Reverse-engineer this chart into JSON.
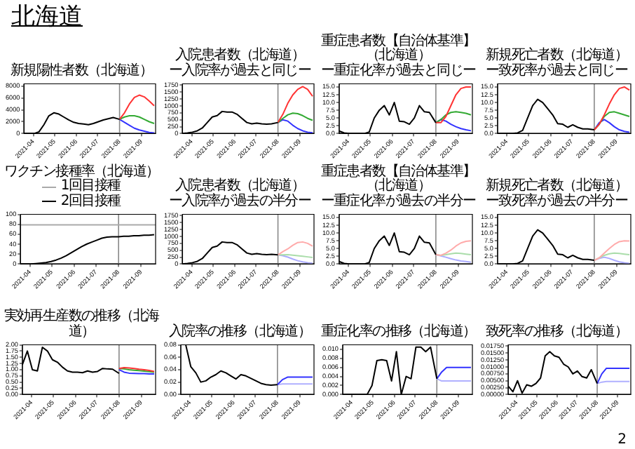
{
  "chart_data": [
    {
      "type": "line",
      "title": "新規陽性者数（北海道）",
      "annotations": [
        "北海道"
      ],
      "x": [
        "2021-03-19",
        "2021-03-26",
        "2021-04-02",
        "2021-04-09",
        "2021-04-16",
        "2021-04-23",
        "2021-04-30",
        "2021-05-07",
        "2021-05-14",
        "2021-05-21",
        "2021-05-28",
        "2021-06-04",
        "2021-06-11",
        "2021-06-18",
        "2021-06-25",
        "2021-07-02",
        "2021-07-09",
        "2021-07-16",
        "2021-07-23",
        "2021-08-01"
      ],
      "xlim": [
        "2021-03-19",
        "2021-09-21"
      ],
      "xticks": [
        "2021-04",
        "2021-05",
        "2021-06",
        "2021-07",
        "2021-08",
        "2021-09"
      ],
      "ylim": [
        0,
        8400
      ],
      "yticks": [
        0,
        2000,
        4000,
        6000,
        8000
      ],
      "ref_lines": [
        {
          "axis": "x",
          "value": "2021-08-01",
          "color": "#888888"
        }
      ],
      "series": [
        {
          "color": "#000000",
          "values": [
            0,
            0,
            0,
            300,
            1500,
            3000,
            3500,
            3300,
            2800,
            2300,
            1900,
            1700,
            1600,
            1500,
            1700,
            2000,
            2300,
            2500,
            2700,
            2400
          ]
        },
        {
          "color": "#ff3333",
          "x": [
            "2021-08-01",
            "2021-08-08",
            "2021-08-15",
            "2021-08-22",
            "2021-08-29",
            "2021-09-05",
            "2021-09-12",
            "2021-09-19"
          ],
          "values": [
            2400,
            3500,
            5000,
            6100,
            6500,
            6200,
            5500,
            4700
          ]
        },
        {
          "color": "#33aa33",
          "x": [
            "2021-08-01",
            "2021-08-08",
            "2021-08-15",
            "2021-08-22",
            "2021-08-29",
            "2021-09-05",
            "2021-09-12",
            "2021-09-19"
          ],
          "values": [
            2400,
            2800,
            3000,
            3000,
            2800,
            2400,
            2000,
            1700
          ]
        },
        {
          "color": "#3333ff",
          "x": [
            "2021-08-01",
            "2021-08-08",
            "2021-08-15",
            "2021-08-22",
            "2021-08-29",
            "2021-09-05",
            "2021-09-12",
            "2021-09-19"
          ],
          "values": [
            2400,
            1900,
            1400,
            900,
            600,
            400,
            200,
            100
          ]
        }
      ]
    },
    {
      "type": "line",
      "title": "入院患者数（北海道）",
      "subtitle": "ー入院率が過去と同じー",
      "x": [
        "2021-03-19",
        "2021-03-26",
        "2021-04-02",
        "2021-04-09",
        "2021-04-16",
        "2021-04-23",
        "2021-04-30",
        "2021-05-07",
        "2021-05-14",
        "2021-05-21",
        "2021-05-28",
        "2021-06-04",
        "2021-06-11",
        "2021-06-18",
        "2021-06-25",
        "2021-07-02",
        "2021-07-09",
        "2021-07-16",
        "2021-07-23",
        "2021-08-01"
      ],
      "xlim": [
        "2021-03-19",
        "2021-09-21"
      ],
      "xticks": [
        "2021-04",
        "2021-05",
        "2021-06",
        "2021-07",
        "2021-08",
        "2021-09"
      ],
      "ylim": [
        0,
        1800
      ],
      "yticks": [
        0,
        250,
        500,
        750,
        1000,
        1250,
        1500,
        1750
      ],
      "ref_lines": [
        {
          "axis": "x",
          "value": "2021-08-01",
          "color": "#888888"
        }
      ],
      "series": [
        {
          "color": "#000000",
          "values": [
            0,
            20,
            50,
            100,
            200,
            400,
            600,
            650,
            800,
            780,
            780,
            700,
            550,
            400,
            350,
            380,
            350,
            340,
            350,
            400
          ]
        },
        {
          "color": "#ff3333",
          "x": [
            "2021-08-01",
            "2021-08-08",
            "2021-08-15",
            "2021-08-22",
            "2021-08-29",
            "2021-09-05",
            "2021-09-12",
            "2021-09-19"
          ],
          "values": [
            400,
            700,
            1100,
            1400,
            1600,
            1700,
            1600,
            1350
          ]
        },
        {
          "color": "#33aa33",
          "x": [
            "2021-08-01",
            "2021-08-08",
            "2021-08-15",
            "2021-08-22",
            "2021-08-29",
            "2021-09-05",
            "2021-09-12",
            "2021-09-19"
          ],
          "values": [
            400,
            550,
            680,
            740,
            720,
            650,
            550,
            480
          ]
        },
        {
          "color": "#3333ff",
          "x": [
            "2021-08-01",
            "2021-08-08",
            "2021-08-15",
            "2021-08-22",
            "2021-08-29",
            "2021-09-05",
            "2021-09-12",
            "2021-09-19"
          ],
          "values": [
            400,
            500,
            450,
            300,
            180,
            100,
            50,
            30
          ]
        }
      ]
    },
    {
      "type": "line",
      "title": "重症患者数【自治体基準】（北海道）",
      "subtitle": "ー重症化率が過去と同じー",
      "x": [
        "2021-03-19",
        "2021-03-26",
        "2021-04-02",
        "2021-04-09",
        "2021-04-16",
        "2021-04-23",
        "2021-04-30",
        "2021-05-07",
        "2021-05-14",
        "2021-05-21",
        "2021-05-28",
        "2021-06-04",
        "2021-06-11",
        "2021-06-18",
        "2021-06-25",
        "2021-07-02",
        "2021-07-09",
        "2021-07-16",
        "2021-07-23",
        "2021-08-01"
      ],
      "xlim": [
        "2021-03-19",
        "2021-09-21"
      ],
      "xticks": [
        "2021-04",
        "2021-05",
        "2021-06",
        "2021-07",
        "2021-08",
        "2021-09"
      ],
      "ylim": [
        0,
        16
      ],
      "yticks": [
        {
          "value": 0,
          "label": "0.0"
        },
        2.5,
        {
          "value": 5,
          "label": "5.0"
        },
        7.5,
        {
          "value": 10,
          "label": "10.0"
        },
        12.5,
        {
          "value": 15,
          "label": "15.0"
        }
      ],
      "ref_lines": [
        {
          "axis": "x",
          "value": "2021-08-01",
          "color": "#888888"
        }
      ],
      "series": [
        {
          "color": "#000000",
          "values": [
            0.8,
            0.2,
            0,
            0,
            0,
            0,
            0.5,
            5,
            7.5,
            9,
            6,
            10,
            4,
            3.8,
            3,
            5,
            9,
            7,
            6.8,
            3.5
          ]
        },
        {
          "color": "#ff3333",
          "x": [
            "2021-08-01",
            "2021-08-08",
            "2021-08-15",
            "2021-08-22",
            "2021-08-29",
            "2021-09-05",
            "2021-09-12",
            "2021-09-19"
          ],
          "values": [
            3.5,
            3.5,
            5.5,
            9,
            12.5,
            14.5,
            15,
            15
          ]
        },
        {
          "color": "#33aa33",
          "x": [
            "2021-08-01",
            "2021-08-08",
            "2021-08-15",
            "2021-08-22",
            "2021-08-29",
            "2021-09-05",
            "2021-09-12",
            "2021-09-19"
          ],
          "values": [
            3.5,
            4.5,
            6,
            6.8,
            7,
            6.8,
            6.5,
            6
          ]
        },
        {
          "color": "#3333ff",
          "x": [
            "2021-08-01",
            "2021-08-08",
            "2021-08-15",
            "2021-08-22",
            "2021-08-29",
            "2021-09-05",
            "2021-09-12",
            "2021-09-19"
          ],
          "values": [
            3.5,
            4.5,
            4,
            3,
            2.2,
            1.6,
            1.2,
            0.9
          ]
        }
      ]
    },
    {
      "type": "line",
      "title": "新規死亡者数（北海道）",
      "subtitle": "ー致死率が過去と同じー",
      "x": [
        "2021-03-19",
        "2021-03-26",
        "2021-04-02",
        "2021-04-09",
        "2021-04-16",
        "2021-04-23",
        "2021-04-30",
        "2021-05-07",
        "2021-05-14",
        "2021-05-21",
        "2021-05-28",
        "2021-06-04",
        "2021-06-11",
        "2021-06-18",
        "2021-06-25",
        "2021-07-02",
        "2021-07-09",
        "2021-07-16",
        "2021-07-23",
        "2021-08-01"
      ],
      "xlim": [
        "2021-03-19",
        "2021-09-21"
      ],
      "xticks": [
        "2021-04",
        "2021-05",
        "2021-06",
        "2021-07",
        "2021-08",
        "2021-09"
      ],
      "ylim": [
        0,
        16
      ],
      "yticks": [
        {
          "value": 0,
          "label": "0.0"
        },
        2.5,
        {
          "value": 5,
          "label": "5.0"
        },
        7.5,
        {
          "value": 10,
          "label": "10.0"
        },
        12.5,
        {
          "value": 15,
          "label": "15.0"
        }
      ],
      "ref_lines": [
        {
          "axis": "x",
          "value": "2021-08-01",
          "color": "#888888"
        }
      ],
      "series": [
        {
          "color": "#000000",
          "values": [
            0,
            0,
            0,
            0,
            0.2,
            1,
            5,
            9,
            11,
            10,
            8,
            6,
            3.2,
            3,
            2,
            2.8,
            2,
            1.5,
            1.5,
            1.2
          ]
        },
        {
          "color": "#ff3333",
          "x": [
            "2021-08-01",
            "2021-08-08",
            "2021-08-15",
            "2021-08-22",
            "2021-08-29",
            "2021-09-05",
            "2021-09-12",
            "2021-09-19"
          ],
          "values": [
            1.2,
            3,
            6,
            9.5,
            12.5,
            14.5,
            15,
            14
          ]
        },
        {
          "color": "#33aa33",
          "x": [
            "2021-08-01",
            "2021-08-08",
            "2021-08-15",
            "2021-08-22",
            "2021-08-29",
            "2021-09-05",
            "2021-09-12",
            "2021-09-19"
          ],
          "values": [
            1.2,
            3,
            5.5,
            6.8,
            7,
            6.5,
            6,
            5.5
          ]
        },
        {
          "color": "#3333ff",
          "x": [
            "2021-08-01",
            "2021-08-08",
            "2021-08-15",
            "2021-08-22",
            "2021-08-29",
            "2021-09-05",
            "2021-09-12",
            "2021-09-19"
          ],
          "values": [
            1.2,
            3.5,
            4.5,
            3.5,
            2.2,
            1.2,
            0.7,
            0.4
          ]
        }
      ]
    },
    {
      "type": "line",
      "title": "ワクチン接種率（北海道）",
      "legend": "top",
      "x": [
        "2021-03-19",
        "2021-09-21"
      ],
      "xlim": [
        "2021-03-19",
        "2021-09-21"
      ],
      "xticks": [
        "2021-04",
        "2021-05",
        "2021-06",
        "2021-07",
        "2021-08",
        "2021-09"
      ],
      "ylim": [
        0,
        100
      ],
      "yticks": [
        0,
        20,
        40,
        60,
        80,
        100
      ],
      "ref_lines": [
        {
          "axis": "x",
          "value": "2021-08-01",
          "color": "#888888"
        }
      ],
      "series": [
        {
          "name": "1回目接種",
          "color": "#aaaaaa",
          "values": [
            79,
            79
          ]
        },
        {
          "name": "2回目接種",
          "color": "#000000",
          "x": [
            "2021-03-19",
            "2021-03-26",
            "2021-04-02",
            "2021-04-09",
            "2021-04-16",
            "2021-04-23",
            "2021-04-30",
            "2021-05-07",
            "2021-05-14",
            "2021-05-21",
            "2021-05-28",
            "2021-06-04",
            "2021-06-11",
            "2021-06-18",
            "2021-06-25",
            "2021-07-02",
            "2021-07-09",
            "2021-07-16",
            "2021-07-23",
            "2021-08-01",
            "2021-08-08",
            "2021-08-15",
            "2021-08-22",
            "2021-08-29",
            "2021-09-05",
            "2021-09-12",
            "2021-09-19"
          ],
          "values": [
            0,
            0,
            0,
            1,
            2,
            3,
            5,
            8,
            12,
            17,
            23,
            29,
            35,
            40,
            44,
            48,
            52,
            54,
            55,
            55,
            56,
            56,
            57,
            57,
            58,
            58,
            59
          ]
        }
      ]
    },
    {
      "type": "line",
      "title": "入院患者数（北海道）",
      "subtitle": "ー入院率が過去の半分ー",
      "x": [
        "2021-03-19",
        "2021-03-26",
        "2021-04-02",
        "2021-04-09",
        "2021-04-16",
        "2021-04-23",
        "2021-04-30",
        "2021-05-07",
        "2021-05-14",
        "2021-05-21",
        "2021-05-28",
        "2021-06-04",
        "2021-06-11",
        "2021-06-18",
        "2021-06-25",
        "2021-07-02",
        "2021-07-09",
        "2021-07-16",
        "2021-07-23",
        "2021-08-01"
      ],
      "xlim": [
        "2021-03-19",
        "2021-09-21"
      ],
      "xticks": [
        "2021-04",
        "2021-05",
        "2021-06",
        "2021-07",
        "2021-08",
        "2021-09"
      ],
      "ylim": [
        0,
        1800
      ],
      "yticks": [
        0,
        250,
        500,
        750,
        1000,
        1250,
        1500,
        1750
      ],
      "ref_lines": [
        {
          "axis": "x",
          "value": "2021-08-01",
          "color": "#888888"
        }
      ],
      "series": [
        {
          "color": "#000000",
          "values": [
            0,
            20,
            50,
            100,
            200,
            400,
            600,
            650,
            800,
            780,
            780,
            700,
            550,
            400,
            350,
            380,
            350,
            340,
            350,
            330
          ]
        },
        {
          "color": "#ffaaaa",
          "x": [
            "2021-08-01",
            "2021-08-08",
            "2021-08-15",
            "2021-08-22",
            "2021-08-29",
            "2021-09-05",
            "2021-09-12",
            "2021-09-19"
          ],
          "values": [
            330,
            450,
            550,
            680,
            780,
            800,
            750,
            650
          ]
        },
        {
          "color": "#aaddaa",
          "x": [
            "2021-08-01",
            "2021-08-08",
            "2021-08-15",
            "2021-08-22",
            "2021-08-29",
            "2021-09-05",
            "2021-09-12",
            "2021-09-19"
          ],
          "values": [
            330,
            330,
            340,
            320,
            300,
            280,
            260,
            240
          ]
        },
        {
          "color": "#aaaaff",
          "x": [
            "2021-08-01",
            "2021-08-08",
            "2021-08-15",
            "2021-08-22",
            "2021-08-29",
            "2021-09-05",
            "2021-09-12",
            "2021-09-19"
          ],
          "values": [
            330,
            300,
            250,
            180,
            120,
            80,
            50,
            30
          ]
        }
      ]
    },
    {
      "type": "line",
      "title": "重症患者数【自治体基準】（北海道）",
      "subtitle": "ー重症化率が過去の半分ー",
      "x": [
        "2021-03-19",
        "2021-03-26",
        "2021-04-02",
        "2021-04-09",
        "2021-04-16",
        "2021-04-23",
        "2021-04-30",
        "2021-05-07",
        "2021-05-14",
        "2021-05-21",
        "2021-05-28",
        "2021-06-04",
        "2021-06-11",
        "2021-06-18",
        "2021-06-25",
        "2021-07-02",
        "2021-07-09",
        "2021-07-16",
        "2021-07-23",
        "2021-08-01"
      ],
      "xlim": [
        "2021-03-19",
        "2021-09-21"
      ],
      "xticks": [
        "2021-04",
        "2021-05",
        "2021-06",
        "2021-07",
        "2021-08",
        "2021-09"
      ],
      "ylim": [
        0,
        16
      ],
      "yticks": [
        {
          "value": 0,
          "label": "0.0"
        },
        2.5,
        {
          "value": 5,
          "label": "5.0"
        },
        7.5,
        {
          "value": 10,
          "label": "10.0"
        },
        12.5,
        {
          "value": 15,
          "label": "15.0"
        }
      ],
      "ref_lines": [
        {
          "axis": "x",
          "value": "2021-08-01",
          "color": "#888888"
        }
      ],
      "series": [
        {
          "color": "#000000",
          "values": [
            0.8,
            0.2,
            0,
            0,
            0,
            0,
            0.5,
            5,
            7.5,
            9,
            6,
            10,
            4,
            3.8,
            3,
            5,
            9,
            7,
            6.8,
            3
          ]
        },
        {
          "color": "#ffaaaa",
          "x": [
            "2021-08-01",
            "2021-08-08",
            "2021-08-15",
            "2021-08-22",
            "2021-08-29",
            "2021-09-05",
            "2021-09-12",
            "2021-09-19"
          ],
          "values": [
            3,
            2.8,
            3.5,
            4.5,
            5.8,
            6.8,
            7.3,
            7.5
          ]
        },
        {
          "color": "#aaddaa",
          "x": [
            "2021-08-01",
            "2021-08-08",
            "2021-08-15",
            "2021-08-22",
            "2021-08-29",
            "2021-09-05",
            "2021-09-12",
            "2021-09-19"
          ],
          "values": [
            3,
            2.8,
            3,
            3.3,
            3.5,
            3.4,
            3.2,
            3
          ]
        },
        {
          "color": "#aaaaff",
          "x": [
            "2021-08-01",
            "2021-08-08",
            "2021-08-15",
            "2021-08-22",
            "2021-08-29",
            "2021-09-05",
            "2021-09-12",
            "2021-09-19"
          ],
          "values": [
            3,
            2.6,
            2.2,
            1.7,
            1.3,
            1,
            0.8,
            0.6
          ]
        }
      ]
    },
    {
      "type": "line",
      "title": "新規死亡者数（北海道）",
      "subtitle": "ー致死率が過去の半分ー",
      "x": [
        "2021-03-19",
        "2021-03-26",
        "2021-04-02",
        "2021-04-09",
        "2021-04-16",
        "2021-04-23",
        "2021-04-30",
        "2021-05-07",
        "2021-05-14",
        "2021-05-21",
        "2021-05-28",
        "2021-06-04",
        "2021-06-11",
        "2021-06-18",
        "2021-06-25",
        "2021-07-02",
        "2021-07-09",
        "2021-07-16",
        "2021-07-23",
        "2021-08-01"
      ],
      "xlim": [
        "2021-03-19",
        "2021-09-21"
      ],
      "xticks": [
        "2021-04",
        "2021-05",
        "2021-06",
        "2021-07",
        "2021-08",
        "2021-09"
      ],
      "ylim": [
        0,
        16
      ],
      "yticks": [
        {
          "value": 0,
          "label": "0.0"
        },
        2.5,
        {
          "value": 5,
          "label": "5.0"
        },
        7.5,
        {
          "value": 10,
          "label": "10.0"
        },
        12.5,
        {
          "value": 15,
          "label": "15.0"
        }
      ],
      "ref_lines": [
        {
          "axis": "x",
          "value": "2021-08-01",
          "color": "#888888"
        }
      ],
      "series": [
        {
          "color": "#000000",
          "values": [
            0,
            0,
            0,
            0,
            0.2,
            1,
            5,
            9,
            11,
            10,
            8,
            6,
            3.2,
            3,
            2,
            2.8,
            2,
            1.5,
            1.5,
            1.2
          ]
        },
        {
          "color": "#ffaaaa",
          "x": [
            "2021-08-01",
            "2021-08-08",
            "2021-08-15",
            "2021-08-22",
            "2021-08-29",
            "2021-09-05",
            "2021-09-12",
            "2021-09-19"
          ],
          "values": [
            1.2,
            2,
            3.5,
            5,
            6.3,
            7.2,
            7.5,
            7.4
          ]
        },
        {
          "color": "#aaddaa",
          "x": [
            "2021-08-01",
            "2021-08-08",
            "2021-08-15",
            "2021-08-22",
            "2021-08-29",
            "2021-09-05",
            "2021-09-12",
            "2021-09-19"
          ],
          "values": [
            1.2,
            2,
            2.8,
            3.3,
            3.5,
            3.4,
            3.2,
            3
          ]
        },
        {
          "color": "#aaaaff",
          "x": [
            "2021-08-01",
            "2021-08-08",
            "2021-08-15",
            "2021-08-22",
            "2021-08-29",
            "2021-09-05",
            "2021-09-12",
            "2021-09-19"
          ],
          "values": [
            1.2,
            1.8,
            2.2,
            1.8,
            1.2,
            0.7,
            0.4,
            0.2
          ]
        }
      ]
    },
    {
      "type": "line",
      "title": "実効再生産数の推移（北海道）",
      "x": [
        "2021-03-19",
        "2021-03-26",
        "2021-04-02",
        "2021-04-09",
        "2021-04-16",
        "2021-04-23",
        "2021-04-30",
        "2021-05-07",
        "2021-05-14",
        "2021-05-21",
        "2021-05-28",
        "2021-06-04",
        "2021-06-11",
        "2021-06-18",
        "2021-06-25",
        "2021-07-02",
        "2021-07-09",
        "2021-07-16",
        "2021-07-23",
        "2021-08-01"
      ],
      "xlim": [
        "2021-03-19",
        "2021-09-21"
      ],
      "xticks": [
        "2021-04",
        "2021-05",
        "2021-06",
        "2021-07",
        "2021-08",
        "2021-09"
      ],
      "ylim": [
        0,
        2
      ],
      "yticks": [
        {
          "value": 0,
          "label": "0.00"
        },
        0.25,
        {
          "value": 0.5,
          "label": "0.50"
        },
        0.75,
        {
          "value": 1,
          "label": "1.00"
        },
        1.25,
        {
          "value": 1.5,
          "label": "1.50"
        },
        1.75,
        {
          "value": 2,
          "label": "2.00"
        }
      ],
      "ref_lines": [
        {
          "axis": "x",
          "value": "2021-08-01",
          "color": "#888888"
        }
      ],
      "series": [
        {
          "color": "#000000",
          "values": [
            1.2,
            1.75,
            1.0,
            0.95,
            1.9,
            1.75,
            1.4,
            1.3,
            1.1,
            0.95,
            0.9,
            0.9,
            0.88,
            0.95,
            0.9,
            0.93,
            1.05,
            1.03,
            1.02,
            0.85
          ]
        },
        {
          "color": "#ff3333",
          "x": [
            "2021-08-01",
            "2021-08-08",
            "2021-08-15",
            "2021-08-22",
            "2021-08-29",
            "2021-09-05",
            "2021-09-12",
            "2021-09-19"
          ],
          "values": [
            1.05,
            1.08,
            1.07,
            1.05,
            1.02,
            1.0,
            0.97,
            0.93
          ]
        },
        {
          "color": "#33aa33",
          "x": [
            "2021-08-01",
            "2021-08-08",
            "2021-08-15",
            "2021-08-22",
            "2021-08-29",
            "2021-09-05",
            "2021-09-12",
            "2021-09-19"
          ],
          "values": [
            1.05,
            1.03,
            1.0,
            0.98,
            0.96,
            0.94,
            0.92,
            0.9
          ]
        },
        {
          "color": "#3333ff",
          "x": [
            "2021-08-01",
            "2021-08-08",
            "2021-08-15",
            "2021-08-22",
            "2021-08-29",
            "2021-09-05",
            "2021-09-12",
            "2021-09-19"
          ],
          "values": [
            1.0,
            0.9,
            0.86,
            0.85,
            0.84,
            0.84,
            0.83,
            0.83
          ]
        }
      ]
    },
    {
      "type": "line",
      "title": "入院率の推移（北海道）",
      "xlim": [
        "2021-03-19",
        "2021-09-21"
      ],
      "xticks": [
        "2021-04",
        "2021-05",
        "2021-06",
        "2021-07",
        "2021-08",
        "2021-09"
      ],
      "ylim": [
        0,
        0.08
      ],
      "yticks": [
        {
          "value": 0,
          "label": "0.00"
        },
        0.02,
        0.04,
        0.06,
        0.08
      ],
      "ref_lines": [
        {
          "axis": "x",
          "value": "2021-08-01",
          "color": "#888888"
        }
      ],
      "series": [
        {
          "color": "#000000",
          "x": [
            "2021-03-26",
            "2021-04-02",
            "2021-04-09",
            "2021-04-16",
            "2021-04-23",
            "2021-04-30",
            "2021-05-07",
            "2021-05-14",
            "2021-05-21",
            "2021-05-28",
            "2021-06-04",
            "2021-06-11",
            "2021-06-18",
            "2021-06-25",
            "2021-07-02",
            "2021-07-09",
            "2021-07-16",
            "2021-07-23",
            "2021-08-01"
          ],
          "values": [
            0.08,
            0.045,
            0.035,
            0.02,
            0.022,
            0.028,
            0.032,
            0.038,
            0.035,
            0.03,
            0.025,
            0.032,
            0.03,
            0.026,
            0.022,
            0.018,
            0.016,
            0.015,
            0.016
          ]
        },
        {
          "color": "#3333ff",
          "x": [
            "2021-08-01",
            "2021-08-08",
            "2021-08-15",
            "2021-08-22",
            "2021-08-29",
            "2021-09-05",
            "2021-09-12",
            "2021-09-19"
          ],
          "values": [
            0.016,
            0.024,
            0.028,
            0.028,
            0.028,
            0.028,
            0.028,
            0.028
          ]
        },
        {
          "color": "#b0b0ff",
          "x": [
            "2021-08-01",
            "2021-08-08",
            "2021-08-15",
            "2021-08-22",
            "2021-08-29",
            "2021-09-05",
            "2021-09-12",
            "2021-09-19"
          ],
          "values": [
            0.016,
            0.017,
            0.017,
            0.017,
            0.017,
            0.017,
            0.017,
            0.017
          ]
        }
      ]
    },
    {
      "type": "line",
      "title": "重症化率の推移（北海道）",
      "x": [
        "2021-03-19",
        "2021-03-26",
        "2021-04-02",
        "2021-04-09",
        "2021-04-16",
        "2021-04-23",
        "2021-04-30",
        "2021-05-07",
        "2021-05-14",
        "2021-05-21",
        "2021-05-28",
        "2021-06-04",
        "2021-06-11",
        "2021-06-18",
        "2021-06-25",
        "2021-07-02",
        "2021-07-09",
        "2021-07-16",
        "2021-07-23",
        "2021-08-01"
      ],
      "xlim": [
        "2021-03-19",
        "2021-09-21"
      ],
      "xticks": [
        "2021-04",
        "2021-05",
        "2021-06",
        "2021-07",
        "2021-08",
        "2021-09"
      ],
      "ylim": [
        0,
        0.011
      ],
      "yticks": [
        {
          "value": 0,
          "label": "0.000"
        },
        0.002,
        0.004,
        0.006,
        0.008,
        {
          "value": 0.01,
          "label": "0.010"
        }
      ],
      "ref_lines": [
        {
          "axis": "x",
          "value": "2021-08-01",
          "color": "#888888"
        }
      ],
      "series": [
        {
          "color": "#000000",
          "values": [
            0,
            0,
            0,
            0,
            0,
            0,
            0.002,
            0.0075,
            0.0077,
            0.0075,
            0.003,
            0.0095,
            0,
            0.004,
            0.0035,
            0.0105,
            0.0105,
            0.0095,
            0.0105,
            0.0035
          ]
        },
        {
          "color": "#3333ff",
          "x": [
            "2021-08-01",
            "2021-08-08",
            "2021-08-15",
            "2021-08-22",
            "2021-08-29",
            "2021-09-05",
            "2021-09-12",
            "2021-09-19"
          ],
          "values": [
            0.0035,
            0.005,
            0.006,
            0.006,
            0.006,
            0.006,
            0.006,
            0.006
          ]
        },
        {
          "color": "#b0b0ff",
          "x": [
            "2021-08-01",
            "2021-08-08",
            "2021-08-15",
            "2021-08-22",
            "2021-08-29",
            "2021-09-05",
            "2021-09-12",
            "2021-09-19"
          ],
          "values": [
            0.0035,
            0.003,
            0.003,
            0.003,
            0.003,
            0.003,
            0.003,
            0.003
          ]
        }
      ]
    },
    {
      "type": "line",
      "title": "致死率の推移（北海道）",
      "annotations": [
        "2"
      ],
      "x": [
        "2021-03-19",
        "2021-03-26",
        "2021-04-02",
        "2021-04-09",
        "2021-04-16",
        "2021-04-23",
        "2021-04-30",
        "2021-05-07",
        "2021-05-14",
        "2021-05-21",
        "2021-05-28",
        "2021-06-04",
        "2021-06-11",
        "2021-06-18",
        "2021-06-25",
        "2021-07-02",
        "2021-07-09",
        "2021-07-16",
        "2021-07-23",
        "2021-08-01"
      ],
      "xlim": [
        "2021-03-19",
        "2021-09-21"
      ],
      "xticks": [
        "2021-04",
        "2021-05",
        "2021-06",
        "2021-07",
        "2021-08",
        "2021-09"
      ],
      "ylim": [
        0,
        0.018
      ],
      "yticks": [
        {
          "value": 0,
          "label": "0.00000"
        },
        {
          "value": 0.0025,
          "label": "0.00250"
        },
        {
          "value": 0.005,
          "label": "0.00500"
        },
        {
          "value": 0.0075,
          "label": "0.00750"
        },
        {
          "value": 0.01,
          "label": "0.01000"
        },
        {
          "value": 0.0125,
          "label": "0.01250"
        },
        {
          "value": 0.015,
          "label": "0.01500"
        },
        {
          "value": 0.0175,
          "label": "0.01750"
        }
      ],
      "ref_lines": [
        {
          "axis": "x",
          "value": "2021-08-01",
          "color": "#888888"
        }
      ],
      "series": [
        {
          "color": "#000000",
          "values": [
            0.003,
            0.001,
            0.005,
            0.0005,
            0.0035,
            0.003,
            0.004,
            0.006,
            0.014,
            0.0155,
            0.014,
            0.0135,
            0.011,
            0.01,
            0.0075,
            0.0085,
            0.0065,
            0.006,
            0.009,
            0.004
          ]
        },
        {
          "color": "#3333ff",
          "x": [
            "2021-08-01",
            "2021-08-08",
            "2021-08-15",
            "2021-08-22",
            "2021-08-29",
            "2021-09-05",
            "2021-09-12",
            "2021-09-19"
          ],
          "values": [
            0.004,
            0.0075,
            0.0095,
            0.0095,
            0.0095,
            0.0095,
            0.0095,
            0.0095
          ]
        },
        {
          "color": "#b0b0ff",
          "x": [
            "2021-08-01",
            "2021-08-08",
            "2021-08-15",
            "2021-08-22",
            "2021-08-29",
            "2021-09-05",
            "2021-09-12",
            "2021-09-19"
          ],
          "values": [
            0.004,
            0.0045,
            0.0047,
            0.0047,
            0.0047,
            0.0047,
            0.0047,
            0.0047
          ]
        }
      ]
    }
  ]
}
